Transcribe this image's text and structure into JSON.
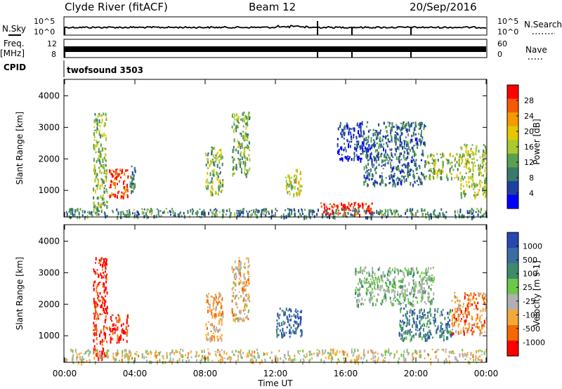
{
  "header": {
    "station": "Clyde River (fitACF)",
    "beam": "Beam 12",
    "date": "20/Sep/2016"
  },
  "strips": {
    "nsky_label": "N.Sky",
    "nsky_ticks": [
      "10^5",
      "10^0"
    ],
    "nsearch_ticks": [
      "10^5",
      "10^0"
    ],
    "nsearch_label": "N.Search",
    "freq_label": "Freq.",
    "freq_unit": "[MHz]",
    "freq_ticks": [
      "12",
      "8"
    ],
    "nave_ticks": [
      "60",
      "0"
    ],
    "nave_label": "Nave",
    "cpid_label": "CPID",
    "cpid_value": "twofsound 3503"
  },
  "chart_data": [
    {
      "type": "heatmap",
      "panel": "power",
      "ylabel": "Slant Range [km]",
      "xlabel": "Time UT",
      "x_ticks": [
        "00:00",
        "04:00",
        "08:00",
        "12:00",
        "16:00",
        "20:00",
        "00:00"
      ],
      "y_ticks": [
        1000,
        2000,
        3000,
        4000
      ],
      "ylim": [
        180,
        4500
      ],
      "xlim_hours": [
        0,
        24
      ],
      "colorbar_label": "Power [dB]",
      "colorbar_ticks": [
        "28",
        "24",
        "20",
        "16",
        "12",
        "8",
        "4"
      ],
      "colorbar_colors": [
        "#ff0000",
        "#f55a00",
        "#f59a00",
        "#e3c800",
        "#a9c832",
        "#5aa050",
        "#3a7a6a",
        "#2040a0",
        "#0000ff"
      ],
      "echo_regions": [
        {
          "t": [
            1.6,
            2.4
          ],
          "r": [
            300,
            3500
          ],
          "level": 0.45
        },
        {
          "t": [
            2.5,
            3.6
          ],
          "r": [
            800,
            1700
          ],
          "level": 0.9
        },
        {
          "t": [
            3.7,
            4.0
          ],
          "r": [
            1000,
            1800
          ],
          "level": 0.3
        },
        {
          "t": [
            8.0,
            9.0
          ],
          "r": [
            900,
            2400
          ],
          "level": 0.45
        },
        {
          "t": [
            9.5,
            10.5
          ],
          "r": [
            1500,
            3500
          ],
          "level": 0.4
        },
        {
          "t": [
            12.5,
            13.5
          ],
          "r": [
            900,
            1700
          ],
          "level": 0.55
        },
        {
          "t": [
            15.5,
            17.0
          ],
          "r": [
            2000,
            3200
          ],
          "level": 0.15
        },
        {
          "t": [
            17.0,
            20.5
          ],
          "r": [
            1200,
            3200
          ],
          "level": 0.25
        },
        {
          "t": [
            20.5,
            22.5
          ],
          "r": [
            1400,
            2200
          ],
          "level": 0.45
        },
        {
          "t": [
            22.5,
            24.0
          ],
          "r": [
            800,
            2500
          ],
          "level": 0.5
        },
        {
          "t": [
            14.5,
            17.5
          ],
          "r": [
            250,
            650
          ],
          "level": 0.95
        },
        {
          "t": [
            0.0,
            24.0
          ],
          "r": [
            180,
            450
          ],
          "level": 0.3
        }
      ]
    },
    {
      "type": "heatmap",
      "panel": "velocity",
      "ylabel": "Slant Range [km]",
      "xlabel": "Time UT",
      "x_ticks": [
        "00:00",
        "04:00",
        "08:00",
        "12:00",
        "16:00",
        "20:00",
        "00:00"
      ],
      "y_ticks": [
        1000,
        2000,
        3000,
        4000
      ],
      "ylim": [
        180,
        4500
      ],
      "xlim_hours": [
        0,
        24
      ],
      "colorbar_label": "Velocity [m s-1]",
      "colorbar_ticks": [
        "1000",
        "500",
        "100",
        "25",
        "-25",
        "-100",
        "-500",
        "-1000"
      ],
      "colorbar_colors": [
        "#2848b0",
        "#3a6ea0",
        "#3f8a6a",
        "#6cc84a",
        "#b0b0b0",
        "#f5a83a",
        "#f56a00",
        "#ff0000"
      ],
      "echo_regions": [
        {
          "t": [
            1.6,
            2.4
          ],
          "r": [
            300,
            3500
          ],
          "level": 0.05
        },
        {
          "t": [
            2.5,
            3.6
          ],
          "r": [
            800,
            1700
          ],
          "level": 0.05
        },
        {
          "t": [
            8.0,
            9.0
          ],
          "r": [
            900,
            2400
          ],
          "level": 0.3
        },
        {
          "t": [
            9.5,
            10.5
          ],
          "r": [
            1500,
            3500
          ],
          "level": 0.35
        },
        {
          "t": [
            12.0,
            13.5
          ],
          "r": [
            1000,
            1900
          ],
          "level": 0.85
        },
        {
          "t": [
            16.5,
            21.0
          ],
          "r": [
            2000,
            3200
          ],
          "level": 0.55
        },
        {
          "t": [
            19.0,
            22.0
          ],
          "r": [
            900,
            1900
          ],
          "level": 0.75
        },
        {
          "t": [
            22.0,
            24.0
          ],
          "r": [
            1100,
            2400
          ],
          "level": 0.25
        },
        {
          "t": [
            0.0,
            24.0
          ],
          "r": [
            180,
            600
          ],
          "level": 0.4
        }
      ]
    }
  ]
}
